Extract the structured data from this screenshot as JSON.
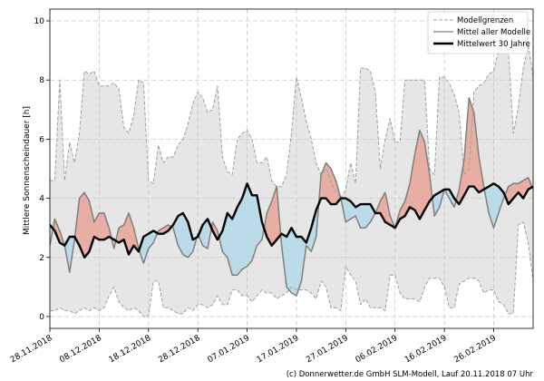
{
  "chart_data": {
    "type": "area",
    "ylabel": "Mittlere Sonnenscheindauer [h]",
    "ylim": [
      -0.4,
      10.4
    ],
    "yticks": [
      0,
      2,
      4,
      6,
      8,
      10
    ],
    "x_tick_labels": [
      "28.11.2018",
      "08.12.2018",
      "18.12.2018",
      "28.12.2018",
      "07.01.2019",
      "17.01.2019",
      "27.01.2019",
      "06.02.2019",
      "16.02.2019",
      "26.02.2019"
    ],
    "x_tick_days": [
      0,
      10,
      20,
      30,
      40,
      50,
      60,
      70,
      80,
      90
    ],
    "x_range_days": [
      0,
      98
    ],
    "grid": true,
    "legend_position": "top-right",
    "legend": {
      "range": "Modellgrenzen",
      "mean": "Mittel aller Modelle",
      "climate": "Mittelwert 30 Jahre"
    },
    "colors": {
      "range_fill": "#e6e6e6",
      "range_line": "#a0a0a0",
      "mean_line": "#7f7f7f",
      "climate_line": "#000000",
      "above_fill": "#e8aea4",
      "below_fill": "#bcdbe8",
      "grid": "#c8c8c8"
    },
    "series": [
      {
        "name": "Modellgrenzen (max)",
        "x": [
          0,
          1,
          2,
          3,
          4,
          5,
          6,
          7,
          8,
          9,
          10,
          11,
          12,
          13,
          14,
          15,
          16,
          17,
          18,
          19,
          20,
          21,
          22,
          23,
          24,
          25,
          26,
          27,
          28,
          29,
          30,
          31,
          32,
          33,
          34,
          35,
          36,
          37,
          38,
          39,
          40,
          41,
          42,
          43,
          44,
          45,
          46,
          47,
          48,
          49,
          50,
          51,
          52,
          53,
          54,
          55,
          56,
          57,
          58,
          59,
          60,
          61,
          62,
          63,
          64,
          65,
          66,
          67,
          68,
          69,
          70,
          71,
          72,
          73,
          74,
          75,
          76,
          77,
          78,
          79,
          80,
          81,
          82,
          83,
          84,
          85,
          86,
          87,
          88,
          89,
          90,
          91,
          92,
          93,
          94,
          95,
          96,
          97,
          98
        ],
        "values": [
          4.6,
          4.6,
          8.0,
          4.6,
          5.9,
          5.2,
          6.2,
          8.3,
          8.2,
          8.3,
          7.8,
          7.8,
          7.8,
          7.9,
          7.7,
          6.4,
          6.2,
          6.8,
          8.0,
          7.9,
          4.6,
          4.5,
          5.8,
          5.2,
          5.4,
          5.4,
          5.8,
          6.0,
          6.5,
          7.2,
          7.6,
          7.4,
          6.9,
          7.0,
          7.8,
          5.4,
          4.9,
          4.8,
          6.0,
          6.2,
          6.3,
          6.0,
          5.2,
          5.2,
          5.4,
          4.6,
          4.4,
          4.4,
          4.8,
          6.2,
          8.1,
          7.4,
          6.6,
          6.0,
          5.2,
          4.8,
          5.0,
          4.6,
          4.2,
          4.0,
          4.3,
          5.2,
          4.5,
          8.4,
          8.4,
          8.3,
          7.6,
          5.0,
          6.0,
          6.7,
          5.9,
          5.9,
          8.0,
          8.0,
          8.0,
          8.0,
          8.0,
          5.0,
          4.8,
          8.1,
          8.1,
          7.9,
          7.5,
          6.9,
          4.8,
          5.0,
          7.6,
          7.8,
          7.9,
          8.2,
          8.3,
          9.0,
          10.2,
          9.0,
          6.2,
          7.1,
          8.4,
          9.2,
          8.1
        ]
      },
      {
        "name": "Modellgrenzen (min)",
        "x": [
          0,
          1,
          2,
          3,
          4,
          5,
          6,
          7,
          8,
          9,
          10,
          11,
          12,
          13,
          14,
          15,
          16,
          17,
          18,
          19,
          20,
          21,
          22,
          23,
          24,
          25,
          26,
          27,
          28,
          29,
          30,
          31,
          32,
          33,
          34,
          35,
          36,
          37,
          38,
          39,
          40,
          41,
          42,
          43,
          44,
          45,
          46,
          47,
          48,
          49,
          50,
          51,
          52,
          53,
          54,
          55,
          56,
          57,
          58,
          59,
          60,
          61,
          62,
          63,
          64,
          65,
          66,
          67,
          68,
          69,
          70,
          71,
          72,
          73,
          74,
          75,
          76,
          77,
          78,
          79,
          80,
          81,
          82,
          83,
          84,
          85,
          86,
          87,
          88,
          89,
          90,
          91,
          92,
          93,
          94,
          95,
          96,
          97,
          98
        ],
        "values": [
          0.2,
          0.2,
          0.3,
          0.2,
          0.2,
          0.1,
          0.2,
          0.3,
          0.2,
          0.3,
          0.2,
          0.3,
          0.7,
          1.0,
          0.5,
          0.3,
          0.2,
          0.3,
          0.2,
          0.0,
          0.0,
          1.2,
          1.2,
          0.3,
          0.3,
          0.2,
          0.1,
          0.1,
          0.3,
          0.2,
          0.4,
          0.4,
          0.3,
          0.4,
          0.7,
          0.4,
          0.4,
          0.9,
          0.9,
          0.7,
          0.7,
          0.5,
          0.7,
          0.9,
          0.8,
          0.8,
          0.6,
          0.7,
          0.8,
          1.0,
          0.9,
          0.9,
          0.9,
          0.8,
          0.6,
          1.2,
          1.0,
          0.3,
          0.3,
          0.2,
          1.7,
          1.4,
          1.2,
          0.4,
          0.6,
          0.3,
          0.3,
          0.3,
          0.2,
          1.4,
          1.4,
          0.8,
          0.6,
          0.6,
          0.6,
          0.5,
          1.0,
          1.3,
          1.3,
          1.3,
          1.0,
          0.3,
          0.3,
          1.1,
          1.2,
          1.3,
          1.3,
          1.2,
          0.8,
          0.9,
          0.9,
          0.5,
          0.4,
          0.1,
          0.1,
          3.1,
          3.2,
          2.5,
          1.2
        ]
      },
      {
        "name": "Mittel aller Modelle",
        "x": [
          0,
          1,
          2,
          3,
          4,
          5,
          6,
          7,
          8,
          9,
          10,
          11,
          12,
          13,
          14,
          15,
          16,
          17,
          18,
          19,
          20,
          21,
          22,
          23,
          24,
          25,
          26,
          27,
          28,
          29,
          30,
          31,
          32,
          33,
          34,
          35,
          36,
          37,
          38,
          39,
          40,
          41,
          42,
          43,
          44,
          45,
          46,
          47,
          48,
          49,
          50,
          51,
          52,
          53,
          54,
          55,
          56,
          57,
          58,
          59,
          60,
          61,
          62,
          63,
          64,
          65,
          66,
          67,
          68,
          69,
          70,
          71,
          72,
          73,
          74,
          75,
          76,
          77,
          78,
          79,
          80,
          81,
          82,
          83,
          84,
          85,
          86,
          87,
          88,
          89,
          90,
          91,
          92,
          93,
          94,
          95,
          96,
          97,
          98
        ],
        "values": [
          2.4,
          3.3,
          2.9,
          2.4,
          1.5,
          2.6,
          4.0,
          4.2,
          3.9,
          3.2,
          3.5,
          3.5,
          3.0,
          2.3,
          3.0,
          3.1,
          3.5,
          3.0,
          2.3,
          1.8,
          2.3,
          2.5,
          2.9,
          3.0,
          3.1,
          3.0,
          2.4,
          2.1,
          2.0,
          2.2,
          2.8,
          2.4,
          2.3,
          3.2,
          2.9,
          2.2,
          2.0,
          1.4,
          1.4,
          1.6,
          1.7,
          1.9,
          2.4,
          2.6,
          3.5,
          3.9,
          4.4,
          2.4,
          1.0,
          0.8,
          0.7,
          1.2,
          2.4,
          2.2,
          2.7,
          4.8,
          5.2,
          5.0,
          4.6,
          4.0,
          3.2,
          3.3,
          3.4,
          3.0,
          3.0,
          3.2,
          3.5,
          3.9,
          4.2,
          3.4,
          3.0,
          3.6,
          3.9,
          4.5,
          5.5,
          6.3,
          5.9,
          4.8,
          3.4,
          3.7,
          4.3,
          4.0,
          3.7,
          4.3,
          5.3,
          7.4,
          6.9,
          5.4,
          4.4,
          3.5,
          3.0,
          3.5,
          4.0,
          4.4,
          4.5,
          4.5,
          4.6,
          4.7,
          4.3
        ]
      },
      {
        "name": "Mittelwert 30 Jahre",
        "x": [
          0,
          1,
          2,
          3,
          4,
          5,
          6,
          7,
          8,
          9,
          10,
          11,
          12,
          13,
          14,
          15,
          16,
          17,
          18,
          19,
          20,
          21,
          22,
          23,
          24,
          25,
          26,
          27,
          28,
          29,
          30,
          31,
          32,
          33,
          34,
          35,
          36,
          37,
          38,
          39,
          40,
          41,
          42,
          43,
          44,
          45,
          46,
          47,
          48,
          49,
          50,
          51,
          52,
          53,
          54,
          55,
          56,
          57,
          58,
          59,
          60,
          61,
          62,
          63,
          64,
          65,
          66,
          67,
          68,
          69,
          70,
          71,
          72,
          73,
          74,
          75,
          76,
          77,
          78,
          79,
          80,
          81,
          82,
          83,
          84,
          85,
          86,
          87,
          88,
          89,
          90,
          91,
          92,
          93,
          94,
          95,
          96,
          97,
          98
        ],
        "values": [
          3.1,
          2.9,
          2.5,
          2.4,
          2.7,
          2.7,
          2.4,
          2.0,
          2.2,
          2.7,
          2.6,
          2.6,
          2.7,
          2.6,
          2.5,
          2.6,
          2.1,
          2.4,
          2.2,
          2.7,
          2.8,
          2.9,
          2.8,
          2.8,
          2.9,
          3.1,
          3.4,
          3.5,
          3.2,
          2.6,
          2.7,
          3.1,
          3.3,
          2.9,
          2.6,
          2.9,
          3.5,
          3.3,
          3.7,
          4.0,
          4.5,
          4.1,
          4.1,
          3.2,
          2.7,
          2.4,
          2.6,
          2.8,
          2.7,
          3.0,
          2.7,
          2.7,
          2.5,
          3.0,
          3.6,
          4.0,
          4.0,
          3.8,
          3.8,
          4.0,
          4.0,
          3.9,
          3.7,
          3.8,
          3.8,
          3.8,
          3.5,
          3.5,
          3.2,
          3.1,
          3.0,
          3.3,
          3.4,
          3.7,
          3.6,
          3.3,
          3.6,
          3.9,
          4.1,
          4.2,
          4.3,
          4.3,
          4.0,
          3.8,
          4.1,
          4.4,
          4.4,
          4.2,
          4.3,
          4.4,
          4.5,
          4.4,
          4.2,
          3.8,
          4.0,
          4.2,
          4.0,
          4.3,
          4.4
        ]
      }
    ]
  },
  "footer": {
    "credit": "(c) Donnerwetter.de GmbH SLM-Modell, Lauf 20.11.2018 07 Uhr"
  }
}
